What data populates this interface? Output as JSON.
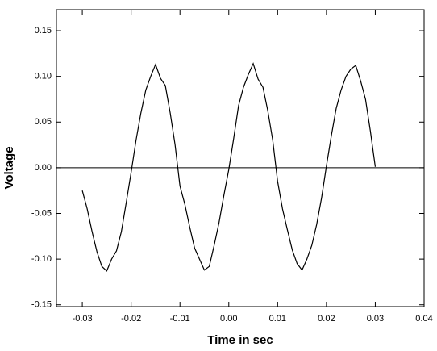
{
  "chart_data": {
    "type": "line",
    "x_label": "Time in sec",
    "y_label": "Voltage",
    "x": [
      -0.03,
      -0.029,
      -0.028,
      -0.027,
      -0.026,
      -0.025,
      -0.024,
      -0.023,
      -0.022,
      -0.021,
      -0.02,
      -0.019,
      -0.018,
      -0.017,
      -0.016,
      -0.015,
      -0.014,
      -0.013,
      -0.012,
      -0.011,
      -0.01,
      -0.009,
      -0.008,
      -0.007,
      -0.006,
      -0.005,
      -0.004,
      -0.003,
      -0.002,
      -0.001,
      0,
      0.001,
      0.002,
      0.003,
      0.004,
      0.005,
      0.006,
      0.007,
      0.008,
      0.009,
      0.01,
      0.011,
      0.012,
      0.013,
      0.014,
      0.015,
      0.016,
      0.017,
      0.018,
      0.019,
      0.02,
      0.021,
      0.022,
      0.023,
      0.024,
      0.025,
      0.026,
      0.027,
      0.028,
      0.029,
      0.03
    ],
    "series": [
      {
        "color": "#000000",
        "values": [
          -0.025,
          -0.045,
          -0.07,
          -0.092,
          -0.108,
          -0.113,
          -0.1,
          -0.091,
          -0.07,
          -0.038,
          -0.005,
          0.03,
          0.06,
          0.085,
          0.1,
          0.113,
          0.098,
          0.09,
          0.06,
          0.025,
          -0.02,
          -0.04,
          -0.065,
          -0.088,
          -0.1,
          -0.112,
          -0.108,
          -0.085,
          -0.06,
          -0.03,
          -0.002,
          0.032,
          0.068,
          0.088,
          0.102,
          0.114,
          0.097,
          0.088,
          0.062,
          0.03,
          -0.015,
          -0.045,
          -0.068,
          -0.09,
          -0.105,
          -0.112,
          -0.1,
          -0.085,
          -0.062,
          -0.033,
          0.002,
          0.035,
          0.065,
          0.085,
          0.1,
          0.108,
          0.112,
          0.095,
          0.075,
          0.04,
          0.001
        ]
      }
    ],
    "xlim": [
      -0.0353,
      0.04
    ],
    "ylim": [
      -0.152,
      0.173
    ],
    "xticks": [
      -0.03,
      -0.02,
      -0.01,
      {
        "value": 0,
        "label": "0.00"
      },
      0.01,
      0.02,
      0.03,
      0.04
    ],
    "yticks": [
      {
        "value": -0.15,
        "label": "-0.15"
      },
      {
        "value": -0.1,
        "label": "-0.10"
      },
      -0.05,
      {
        "value": 0,
        "label": "0.00"
      },
      0.05,
      {
        "value": 0.1,
        "label": "0.10"
      },
      0.15
    ],
    "zero_line": true
  }
}
